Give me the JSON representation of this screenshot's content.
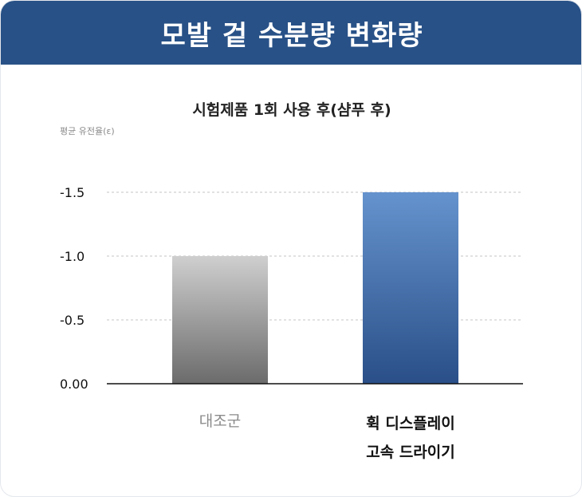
{
  "header": {
    "title": "모발 겉 수분량 변화량"
  },
  "chart_data": {
    "type": "bar",
    "title": "시험제품 1회 사용 후(샴푸 후)",
    "ylabel": "평균 유전율(ε)",
    "xlabel": "",
    "categories": [
      "대조군",
      "휙 디스플레이 고속 드라이기"
    ],
    "category_lines": [
      [
        "대조군"
      ],
      [
        "휙 디스플레이",
        "고속 드라이기"
      ]
    ],
    "values": [
      -1.0,
      -1.5
    ],
    "yticks": [
      "0.00",
      "-0.5",
      "-1.0",
      "-1.5"
    ],
    "ytick_values": [
      0,
      -0.5,
      -1.0,
      -1.5
    ],
    "ylim": [
      0,
      -1.5
    ],
    "grid": true,
    "bar_colors": {
      "control": [
        "#cfcfcf",
        "#6b6b6b"
      ],
      "product": [
        "#6593cd",
        "#2a4f88"
      ]
    }
  }
}
